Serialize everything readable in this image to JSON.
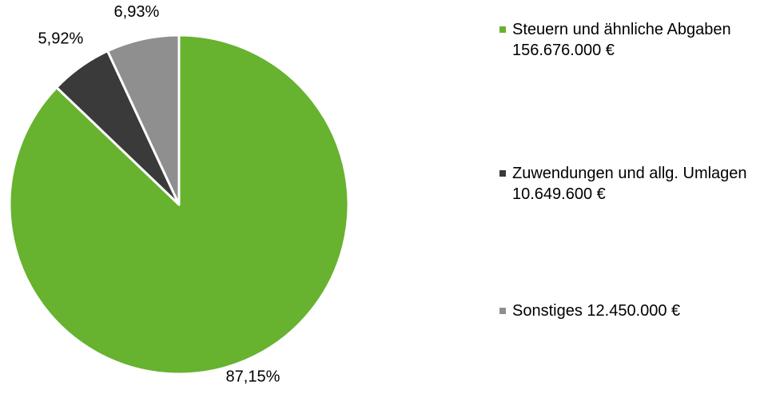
{
  "chart_data": {
    "type": "pie",
    "categories": [
      "Steuern und ähnliche Abgaben 156.676.000 €",
      "Zuwendungen und allg. Umlagen  10.649.600 €",
      "Sonstiges 12.450.000 €"
    ],
    "values": [
      87.15,
      5.92,
      6.93
    ],
    "value_labels": [
      "87,15%",
      "5,92%",
      "6,93%"
    ],
    "colors": [
      "#67b22f",
      "#3a3a3a",
      "#8f8f8f"
    ],
    "legend": "right"
  }
}
